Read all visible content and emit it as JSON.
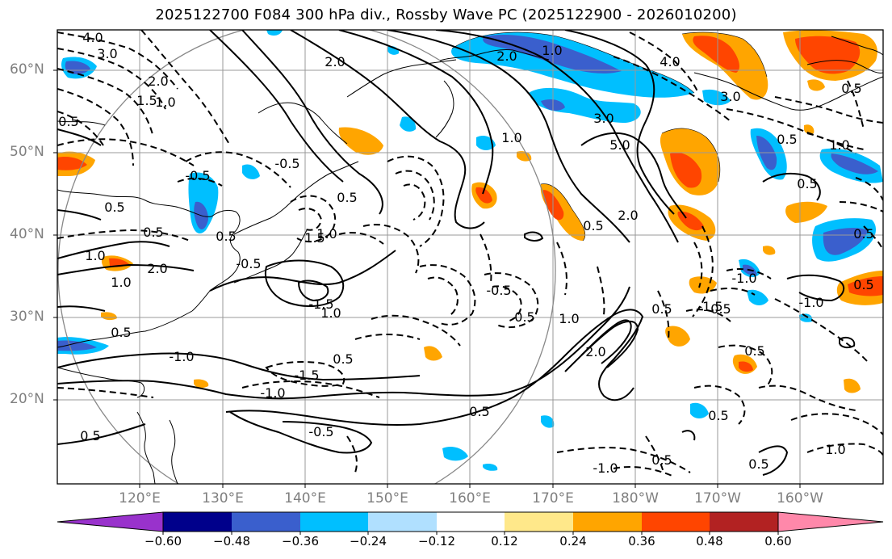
{
  "title": "2025122700 F084 300 hPa div., Rossby Wave PC (2025122900 - 2026010200)",
  "axes": {
    "lat_labels": [
      "60°N",
      "50°N",
      "40°N",
      "30°N",
      "20°N"
    ],
    "lon_labels": [
      "120°E",
      "130°E",
      "140°E",
      "150°E",
      "160°E",
      "170°E",
      "180°W",
      "170°W",
      "160°W"
    ]
  },
  "contour_labels": [
    "4.0",
    "3.0",
    "2.0",
    "1.5",
    "1.0",
    "0.5",
    "0.5",
    "-0.5",
    "0.5",
    "0.5",
    "1.0",
    "2.0",
    "1.0",
    "-0.5",
    "-0.5",
    "1.5",
    "2.0",
    "1.0",
    "0.5",
    "2.0",
    "1.0",
    "1.0",
    "5.0",
    "3.0",
    "2.0",
    "0.5",
    "-1.5",
    "1.0",
    "-1.5",
    "0.5",
    "-1.0",
    "-1.0",
    "0.5",
    "0.5",
    "-0.5",
    "0.5",
    "1.0",
    "2.0",
    "0.5",
    "-0.5",
    "-1.0",
    "-1.5",
    "0.5",
    "-1.0",
    "0.5",
    "4.0",
    "3.0",
    "0.5",
    "1.0",
    "-1.0",
    "0.5",
    "0.5",
    "0.5",
    "0.5",
    "0.5",
    "1.0",
    "0.5",
    "0.5",
    "0.5"
  ],
  "colorbar": {
    "ticks": [
      "−0.60",
      "−0.48",
      "−0.36",
      "−0.24",
      "−0.12",
      "0.12",
      "0.24",
      "0.36",
      "0.48",
      "0.60"
    ],
    "colors": [
      "#9932cc",
      "#00008b",
      "#3a5fcd",
      "#00bfff",
      "#b0e0ff",
      "#ffffff",
      "#ffe88a",
      "#ffa500",
      "#ff4500",
      "#b22222",
      "#ff88aa"
    ]
  }
}
